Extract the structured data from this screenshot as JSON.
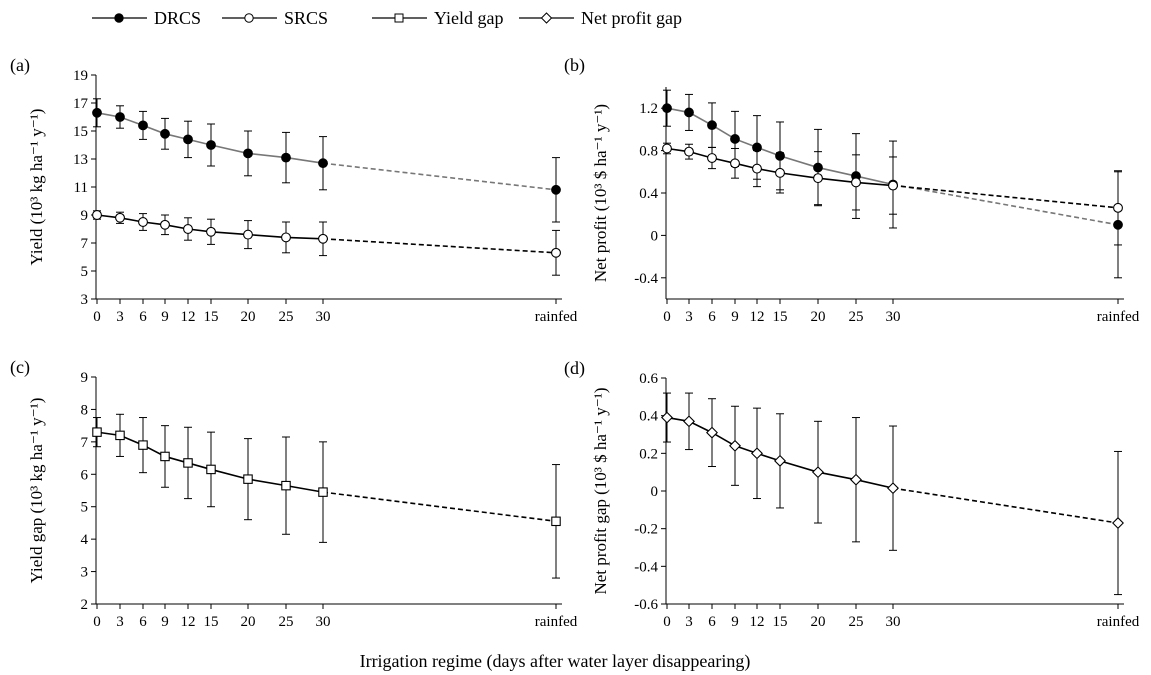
{
  "figure": {
    "xlabel": "Irrigation regime (days after water layer disappearing)",
    "legend": [
      {
        "label": "DRCS",
        "marker": "filled-circle"
      },
      {
        "label": "SRCS",
        "marker": "open-circle"
      },
      {
        "label": "Yield gap",
        "marker": "open-square"
      },
      {
        "label": "Net profit gap",
        "marker": "open-diamond"
      }
    ],
    "colors": {
      "ink": "#000000",
      "drcs_line": "#777777",
      "srcs_line": "#000000"
    }
  },
  "chart_data": [
    {
      "panel": "(a)",
      "type": "line",
      "ylabel": "Yield (10³ kg ha⁻¹ y⁻¹)",
      "ylim": [
        3,
        19
      ],
      "yticks": [
        3,
        5,
        7,
        9,
        11,
        13,
        15,
        17,
        19
      ],
      "x": [
        "0",
        "3",
        "6",
        "9",
        "12",
        "15",
        "20",
        "25",
        "30",
        "rainfed"
      ],
      "series": [
        {
          "name": "DRCS",
          "marker": "filled-circle",
          "color": "#777777",
          "values": [
            16.3,
            16.0,
            15.4,
            14.8,
            14.4,
            14.0,
            13.4,
            13.1,
            12.7,
            10.8
          ],
          "errors": [
            1.0,
            0.8,
            1.0,
            1.1,
            1.3,
            1.5,
            1.6,
            1.8,
            1.9,
            2.3
          ]
        },
        {
          "name": "SRCS",
          "marker": "open-circle",
          "color": "#000000",
          "values": [
            9.0,
            8.8,
            8.5,
            8.3,
            8.0,
            7.8,
            7.6,
            7.4,
            7.3,
            6.3
          ],
          "errors": [
            0.3,
            0.4,
            0.6,
            0.7,
            0.8,
            0.9,
            1.0,
            1.1,
            1.2,
            1.6
          ]
        }
      ]
    },
    {
      "panel": "(b)",
      "type": "line",
      "ylabel": "Net profit (10³ $ ha⁻¹ y⁻¹)",
      "ylim": [
        -0.6,
        1.4
      ],
      "yticks": [
        "-0.4",
        "0",
        "0.4",
        "0.8",
        "1.2"
      ],
      "x": [
        "0",
        "3",
        "6",
        "9",
        "12",
        "15",
        "20",
        "25",
        "30",
        "rainfed"
      ],
      "series": [
        {
          "name": "DRCS",
          "marker": "filled-circle",
          "color": "#777777",
          "values": [
            1.2,
            1.16,
            1.04,
            0.91,
            0.83,
            0.75,
            0.64,
            0.56,
            0.48,
            0.1
          ],
          "errors": [
            0.17,
            0.17,
            0.21,
            0.26,
            0.3,
            0.32,
            0.36,
            0.4,
            0.41,
            0.5
          ]
        },
        {
          "name": "SRCS",
          "marker": "open-circle",
          "color": "#000000",
          "values": [
            0.82,
            0.79,
            0.73,
            0.68,
            0.63,
            0.59,
            0.54,
            0.5,
            0.47,
            0.26
          ],
          "errors": [
            0.05,
            0.07,
            0.1,
            0.14,
            0.17,
            0.19,
            0.25,
            0.26,
            0.27,
            0.35
          ]
        }
      ]
    },
    {
      "panel": "(c)",
      "type": "line",
      "ylabel": "Yield gap (10³ kg ha⁻¹ y⁻¹)",
      "ylim": [
        2,
        9
      ],
      "yticks": [
        2,
        3,
        4,
        5,
        6,
        7,
        8,
        9
      ],
      "x": [
        "0",
        "3",
        "6",
        "9",
        "12",
        "15",
        "20",
        "25",
        "30",
        "rainfed"
      ],
      "series": [
        {
          "name": "Yield gap",
          "marker": "open-square",
          "color": "#000000",
          "values": [
            7.3,
            7.2,
            6.9,
            6.55,
            6.35,
            6.15,
            5.85,
            5.65,
            5.45,
            4.55
          ],
          "errors": [
            0.45,
            0.65,
            0.85,
            0.95,
            1.1,
            1.15,
            1.25,
            1.5,
            1.55,
            1.75
          ]
        }
      ]
    },
    {
      "panel": "(d)",
      "type": "line",
      "ylabel": "Net profit gap (10³ $ ha⁻¹ y⁻¹)",
      "ylim": [
        -0.6,
        0.6
      ],
      "yticks": [
        "-0.6",
        "-0.4",
        "-0.2",
        "0",
        "0.2",
        "0.4",
        "0.6"
      ],
      "x": [
        "0",
        "3",
        "6",
        "9",
        "12",
        "15",
        "20",
        "25",
        "30",
        "rainfed"
      ],
      "series": [
        {
          "name": "Net profit gap",
          "marker": "open-diamond",
          "color": "#000000",
          "values": [
            0.39,
            0.37,
            0.31,
            0.24,
            0.2,
            0.16,
            0.1,
            0.06,
            0.015,
            -0.17
          ],
          "errors": [
            0.13,
            0.15,
            0.18,
            0.21,
            0.24,
            0.25,
            0.27,
            0.33,
            0.33,
            0.38
          ]
        }
      ]
    }
  ]
}
